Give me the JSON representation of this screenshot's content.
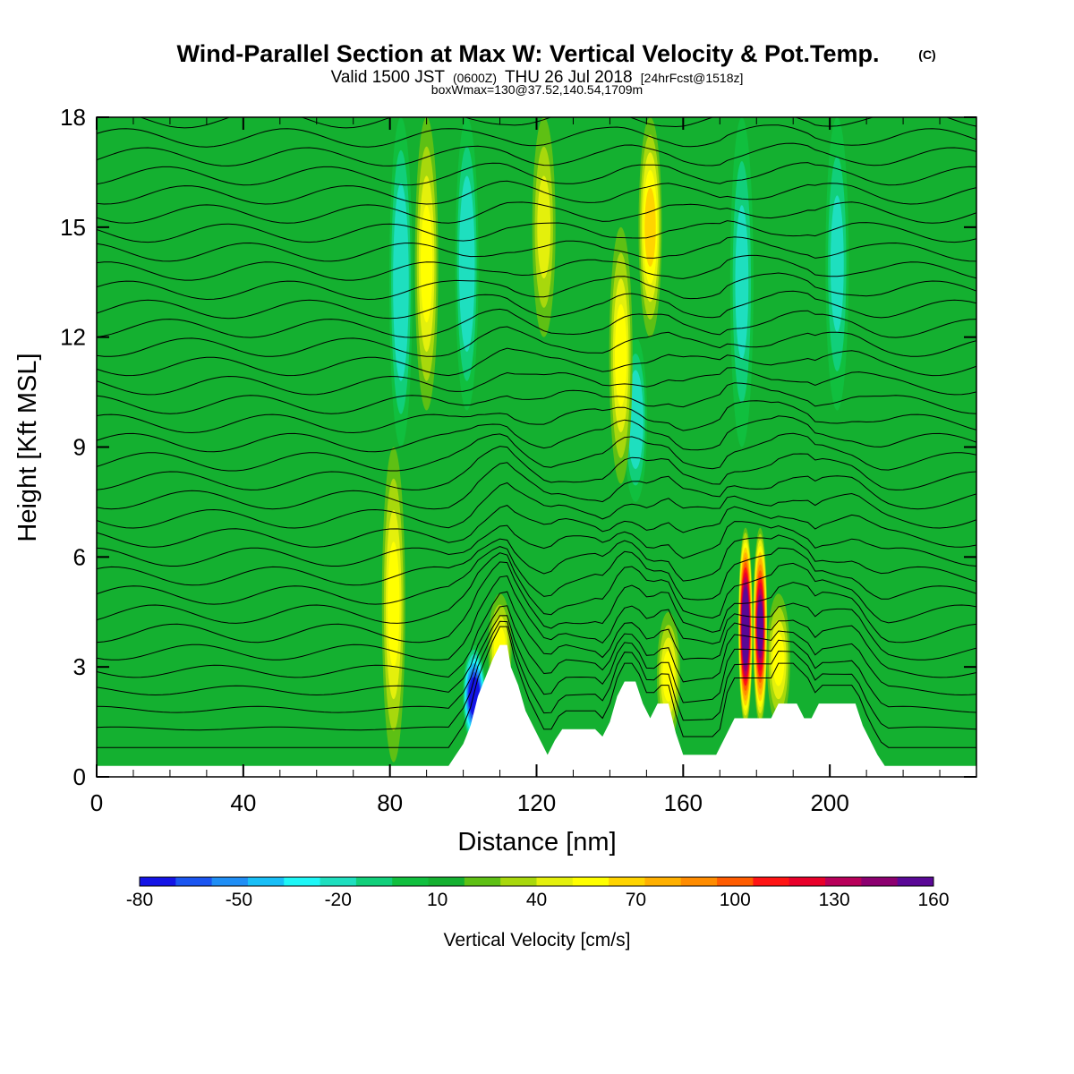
{
  "title": {
    "main": "Wind-Parallel Section at Max W: Vertical Velocity & Pot.Temp.",
    "copyright": "(C)",
    "valid_prefix": "Valid 1500 JST",
    "valid_utc": "(0600Z)",
    "valid_date": "THU 26 Jul 2018",
    "forecast": "[24hrFcst@1518z]",
    "box_info": "boxWmax=130@37.52,140.54,1709m"
  },
  "chart_data": {
    "type": "heatmap",
    "xlabel": "Distance [nm]",
    "ylabel": "Height [Kft MSL]",
    "xlim": [
      0,
      240
    ],
    "ylim": [
      0,
      18
    ],
    "xticks": [
      0,
      40,
      80,
      120,
      160,
      200
    ],
    "yticks": [
      0,
      3,
      6,
      9,
      12,
      15,
      18
    ],
    "background_velocity_cms": 5,
    "updraft_bands": [
      {
        "x_center": 81,
        "y_min": 0.4,
        "y_max": 9,
        "peak_cms": 45
      },
      {
        "x_center": 90,
        "y_min": 10,
        "y_max": 18,
        "peak_cms": 40
      },
      {
        "x_center": 110,
        "y_min": 2,
        "y_max": 5,
        "peak_cms": 40
      },
      {
        "x_center": 122,
        "y_min": 12,
        "y_max": 18,
        "peak_cms": 30
      },
      {
        "x_center": 143,
        "y_min": 8,
        "y_max": 15,
        "peak_cms": 45
      },
      {
        "x_center": 151,
        "y_min": 12,
        "y_max": 18,
        "peak_cms": 50
      },
      {
        "x_center": 156,
        "y_min": 1,
        "y_max": 4.5,
        "peak_cms": 45
      },
      {
        "x_center": 177,
        "y_min": 1.4,
        "y_max": 6.8,
        "peak_cms": 160
      },
      {
        "x_center": 181,
        "y_min": 1.4,
        "y_max": 6.8,
        "peak_cms": 130
      },
      {
        "x_center": 186,
        "y_min": 1.4,
        "y_max": 5,
        "peak_cms": 40
      }
    ],
    "downdraft_bands": [
      {
        "x_center": 103,
        "y_min": 0.8,
        "y_max": 3.6,
        "peak_cms": -80
      },
      {
        "x_center": 83,
        "y_min": 9,
        "y_max": 18,
        "peak_cms": -30
      },
      {
        "x_center": 101,
        "y_min": 10,
        "y_max": 18,
        "peak_cms": -30
      },
      {
        "x_center": 147,
        "y_min": 7.5,
        "y_max": 12,
        "peak_cms": -30
      },
      {
        "x_center": 176,
        "y_min": 9,
        "y_max": 18,
        "peak_cms": -25
      },
      {
        "x_center": 202,
        "y_min": 10,
        "y_max": 18,
        "peak_cms": -25
      }
    ],
    "terrain_kft": [
      [
        0,
        0.3
      ],
      [
        96,
        0.3
      ],
      [
        98,
        0.6
      ],
      [
        100,
        0.9
      ],
      [
        102,
        1.4
      ],
      [
        104,
        2.2
      ],
      [
        106,
        2.7
      ],
      [
        108,
        3.2
      ],
      [
        110,
        3.6
      ],
      [
        112,
        3.6
      ],
      [
        113,
        3.0
      ],
      [
        115,
        2.5
      ],
      [
        117,
        1.8
      ],
      [
        119,
        1.4
      ],
      [
        121,
        1.0
      ],
      [
        123,
        0.6
      ],
      [
        125,
        1.0
      ],
      [
        127,
        1.3
      ],
      [
        136,
        1.3
      ],
      [
        138,
        1.1
      ],
      [
        140,
        1.5
      ],
      [
        142,
        2.2
      ],
      [
        144,
        2.6
      ],
      [
        147,
        2.6
      ],
      [
        149,
        2.0
      ],
      [
        151,
        1.6
      ],
      [
        153,
        2.0
      ],
      [
        156,
        2.0
      ],
      [
        158,
        1.2
      ],
      [
        160,
        0.6
      ],
      [
        169,
        0.6
      ],
      [
        171,
        1.0
      ],
      [
        174,
        1.6
      ],
      [
        184,
        1.6
      ],
      [
        186,
        2.0
      ],
      [
        191,
        2.0
      ],
      [
        193,
        1.6
      ],
      [
        195,
        1.6
      ],
      [
        197,
        2.0
      ],
      [
        207,
        2.0
      ],
      [
        209,
        1.4
      ],
      [
        211,
        1.0
      ],
      [
        213,
        0.6
      ],
      [
        215,
        0.3
      ],
      [
        240,
        0.3
      ]
    ],
    "colorbar": {
      "title": "Vertical Velocity [cm/s]",
      "min": -80,
      "max": 160,
      "step": 10,
      "tick_labels": [
        "-80",
        "-50",
        "-20",
        "10",
        "40",
        "70",
        "100",
        "130",
        "160"
      ],
      "colors": [
        "#1414e6",
        "#1a55f0",
        "#1f8ef5",
        "#19bff7",
        "#1ef7f7",
        "#1edfbf",
        "#11cf7a",
        "#10bf3e",
        "#14b030",
        "#5ec014",
        "#a8d80c",
        "#e4f00c",
        "#ffff00",
        "#ffd400",
        "#ffb000",
        "#ff8c00",
        "#ff5c00",
        "#ff1414",
        "#e8002a",
        "#b8005a",
        "#8c0070",
        "#5a0896"
      ]
    }
  }
}
